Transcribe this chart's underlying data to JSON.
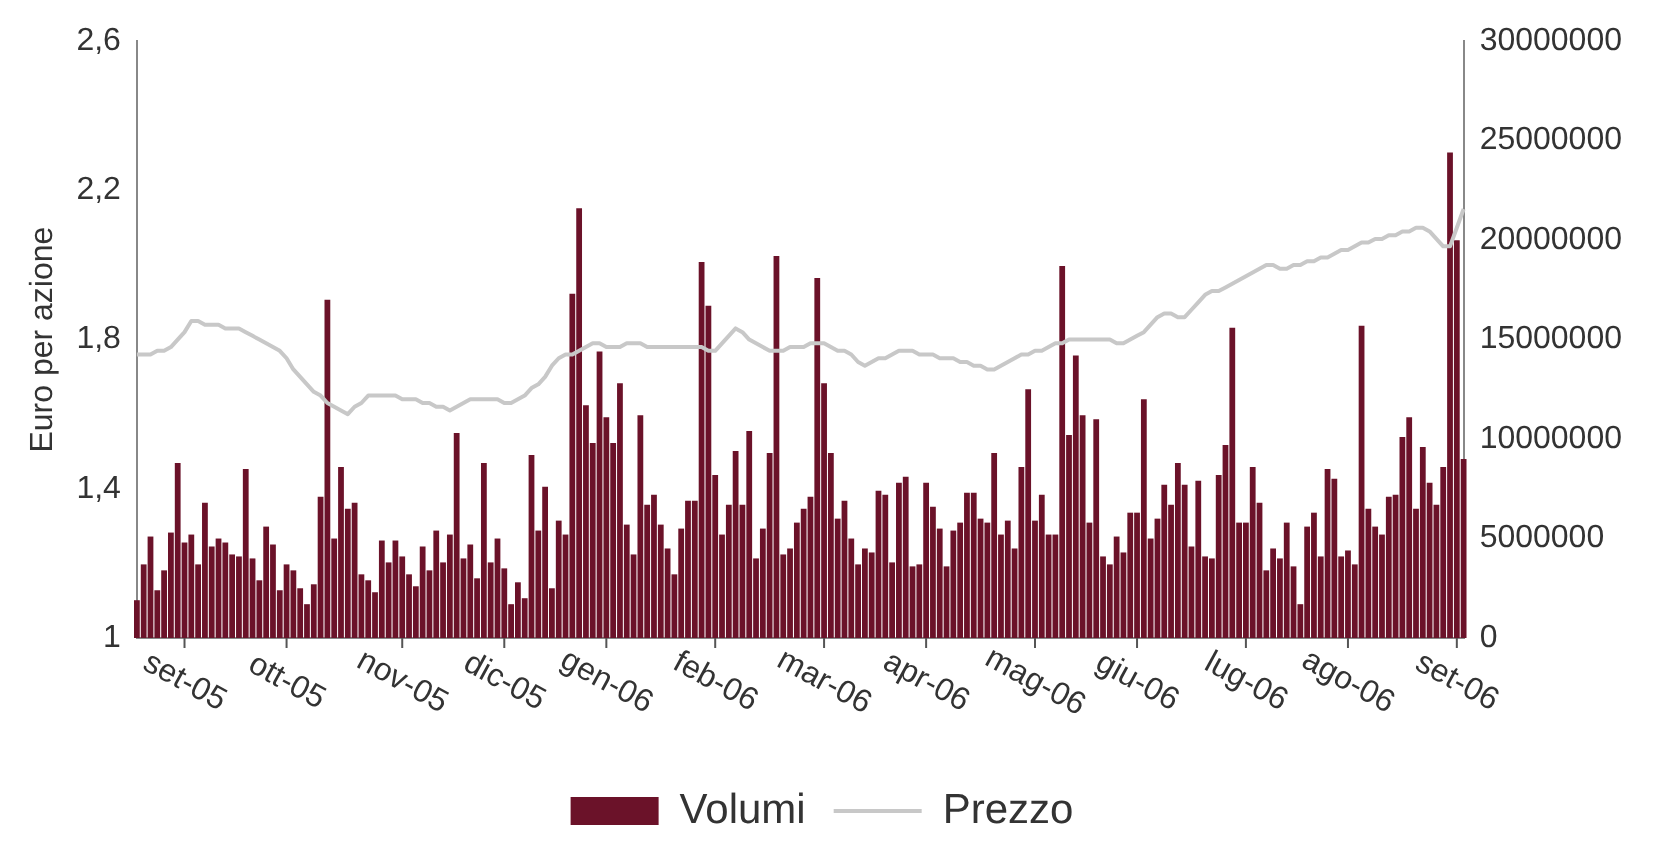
{
  "chart_data": {
    "type": "bar",
    "ylabel": "Euro per azione",
    "legend": "bottom",
    "grid": false,
    "categories": [
      null,
      null,
      null,
      null,
      null,
      null,
      null,
      "set-05",
      null,
      null,
      null,
      null,
      null,
      null,
      null,
      null,
      null,
      null,
      null,
      null,
      null,
      null,
      "ott-05",
      null,
      null,
      null,
      null,
      null,
      null,
      null,
      null,
      null,
      null,
      null,
      null,
      null,
      null,
      null,
      null,
      "nov-05",
      null,
      null,
      null,
      null,
      null,
      null,
      null,
      null,
      null,
      null,
      null,
      null,
      null,
      null,
      "dic-05",
      null,
      null,
      null,
      null,
      null,
      null,
      null,
      null,
      null,
      null,
      null,
      null,
      null,
      null,
      "gen-06",
      null,
      null,
      null,
      null,
      null,
      null,
      null,
      null,
      null,
      null,
      null,
      null,
      null,
      null,
      null,
      "feb-06",
      null,
      null,
      null,
      null,
      null,
      null,
      null,
      null,
      null,
      null,
      null,
      null,
      null,
      null,
      null,
      "mar-06",
      null,
      null,
      null,
      null,
      null,
      null,
      null,
      null,
      null,
      null,
      null,
      null,
      null,
      null,
      "apr-06",
      null,
      null,
      null,
      null,
      null,
      null,
      null,
      null,
      null,
      null,
      null,
      null,
      null,
      null,
      null,
      "mag-06",
      null,
      null,
      null,
      null,
      null,
      null,
      null,
      null,
      null,
      null,
      null,
      null,
      null,
      null,
      "giu-06",
      null,
      null,
      null,
      null,
      null,
      null,
      null,
      null,
      null,
      null,
      null,
      null,
      null,
      null,
      null,
      "lug-06",
      null,
      null,
      null,
      null,
      null,
      null,
      null,
      null,
      null,
      null,
      null,
      null,
      null,
      null,
      "ago-06",
      null,
      null,
      null,
      null,
      null,
      null,
      null,
      null,
      null,
      null,
      null,
      null,
      null,
      null,
      null,
      "set-06",
      null
    ],
    "ylim": [
      1,
      2.6
    ],
    "yticks": [
      1,
      {
        "value": 1.4,
        "label": "1,4"
      },
      {
        "value": 1.8,
        "label": "1,8"
      },
      {
        "value": 2.2,
        "label": "2,2"
      },
      {
        "value": 2.6,
        "label": "2,6"
      }
    ],
    "y2lim": [
      0,
      30000000
    ],
    "y2ticks": [
      0,
      5000000,
      10000000,
      15000000,
      20000000,
      25000000,
      30000000
    ],
    "series": [
      {
        "name": "Volumi",
        "axis": "y2",
        "color": "#6b1229",
        "values": [
          1900000,
          3700000,
          5100000,
          2400000,
          3400000,
          5300000,
          8800000,
          4800000,
          5200000,
          3700000,
          6800000,
          4600000,
          5000000,
          4800000,
          4200000,
          4100000,
          8500000,
          4000000,
          2900000,
          5600000,
          4700000,
          2400000,
          3700000,
          3400000,
          2500000,
          1700000,
          2700000,
          7100000,
          17000000,
          5000000,
          8600000,
          6500000,
          6800000,
          3200000,
          2900000,
          2300000,
          4900000,
          3800000,
          4900000,
          4100000,
          3200000,
          2600000,
          4600000,
          3400000,
          5400000,
          3800000,
          5200000,
          10300000,
          4000000,
          4700000,
          3000000,
          8800000,
          3800000,
          5000000,
          3500000,
          1700000,
          2800000,
          2000000,
          9200000,
          5400000,
          7600000,
          2500000,
          5900000,
          5200000,
          17300000,
          21600000,
          11700000,
          9800000,
          14400000,
          11100000,
          9800000,
          12800000,
          5700000,
          4200000,
          11200000,
          6700000,
          7200000,
          5700000,
          4500000,
          3200000,
          5500000,
          6900000,
          6900000,
          18900000,
          16700000,
          8200000,
          5200000,
          6700000,
          9400000,
          6700000,
          10400000,
          4000000,
          5500000,
          9300000,
          19200000,
          4200000,
          4500000,
          5800000,
          6500000,
          7100000,
          18100000,
          12800000,
          9300000,
          6000000,
          6900000,
          5000000,
          3700000,
          4500000,
          4300000,
          7400000,
          7200000,
          3800000,
          7800000,
          8100000,
          3600000,
          3700000,
          7800000,
          6600000,
          5500000,
          3600000,
          5400000,
          5800000,
          7300000,
          7300000,
          6000000,
          5800000,
          9300000,
          5200000,
          5900000,
          4500000,
          8600000,
          12500000,
          5900000,
          7200000,
          5200000,
          5200000,
          18700000,
          10200000,
          14200000,
          11200000,
          5800000,
          11000000,
          4100000,
          3700000,
          5100000,
          4300000,
          6300000,
          6300000,
          12000000,
          5000000,
          6000000,
          7700000,
          6700000,
          8800000,
          7700000,
          4600000,
          7900000,
          4100000,
          4000000,
          8200000,
          9700000,
          15600000,
          5800000,
          5800000,
          8600000,
          6800000,
          3400000,
          4500000,
          4000000,
          5800000,
          3600000,
          1700000,
          5600000,
          6300000,
          4100000,
          8500000,
          8000000,
          4100000,
          4400000,
          3700000,
          15700000,
          6500000,
          5600000,
          5200000,
          7100000,
          7200000,
          10100000,
          11100000,
          6500000,
          9600000,
          7800000,
          6700000,
          8600000,
          24400000,
          20000000,
          9000000
        ]
      },
      {
        "name": "Prezzo",
        "type": "line",
        "axis": "y",
        "color": "#c8c8c8",
        "marker": "none",
        "line_style": "solid",
        "values": [
          1.76,
          1.76,
          1.76,
          1.77,
          1.77,
          1.78,
          1.8,
          1.82,
          1.85,
          1.85,
          1.84,
          1.84,
          1.84,
          1.83,
          1.83,
          1.83,
          1.82,
          1.81,
          1.8,
          1.79,
          1.78,
          1.77,
          1.75,
          1.72,
          1.7,
          1.68,
          1.66,
          1.65,
          1.63,
          1.62,
          1.61,
          1.6,
          1.62,
          1.63,
          1.65,
          1.65,
          1.65,
          1.65,
          1.65,
          1.64,
          1.64,
          1.64,
          1.63,
          1.63,
          1.62,
          1.62,
          1.61,
          1.62,
          1.63,
          1.64,
          1.64,
          1.64,
          1.64,
          1.64,
          1.63,
          1.63,
          1.64,
          1.65,
          1.67,
          1.68,
          1.7,
          1.73,
          1.75,
          1.76,
          1.76,
          1.77,
          1.78,
          1.79,
          1.79,
          1.78,
          1.78,
          1.78,
          1.79,
          1.79,
          1.79,
          1.78,
          1.78,
          1.78,
          1.78,
          1.78,
          1.78,
          1.78,
          1.78,
          1.78,
          1.77,
          1.77,
          1.79,
          1.81,
          1.83,
          1.82,
          1.8,
          1.79,
          1.78,
          1.77,
          1.77,
          1.77,
          1.78,
          1.78,
          1.78,
          1.79,
          1.79,
          1.79,
          1.78,
          1.77,
          1.77,
          1.76,
          1.74,
          1.73,
          1.74,
          1.75,
          1.75,
          1.76,
          1.77,
          1.77,
          1.77,
          1.76,
          1.76,
          1.76,
          1.75,
          1.75,
          1.75,
          1.74,
          1.74,
          1.73,
          1.73,
          1.72,
          1.72,
          1.73,
          1.74,
          1.75,
          1.76,
          1.76,
          1.77,
          1.77,
          1.78,
          1.79,
          1.79,
          1.8,
          1.8,
          1.8,
          1.8,
          1.8,
          1.8,
          1.8,
          1.79,
          1.79,
          1.8,
          1.81,
          1.82,
          1.84,
          1.86,
          1.87,
          1.87,
          1.86,
          1.86,
          1.88,
          1.9,
          1.92,
          1.93,
          1.93,
          1.94,
          1.95,
          1.96,
          1.97,
          1.98,
          1.99,
          2.0,
          2.0,
          1.99,
          1.99,
          2.0,
          2.0,
          2.01,
          2.01,
          2.02,
          2.02,
          2.03,
          2.04,
          2.04,
          2.05,
          2.06,
          2.06,
          2.07,
          2.07,
          2.08,
          2.08,
          2.09,
          2.09,
          2.1,
          2.1,
          2.09,
          2.07,
          2.05,
          2.05,
          2.1,
          2.15
        ]
      }
    ]
  }
}
